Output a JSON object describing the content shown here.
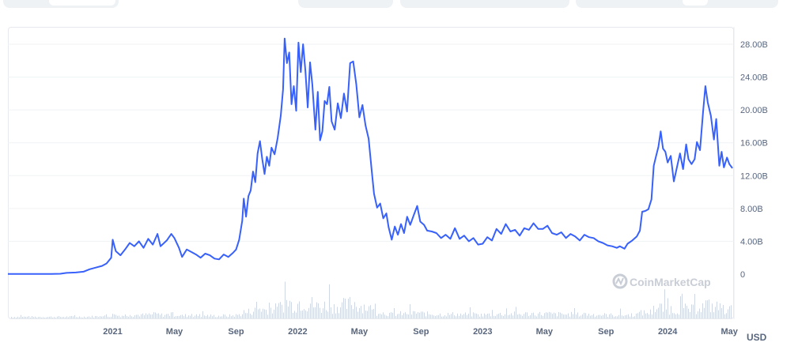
{
  "chart_data": {
    "type": "line",
    "currency": "USD",
    "watermark": "CoinMarketCap",
    "y_ticks": [
      {
        "value": 0,
        "label": "0"
      },
      {
        "value": 4,
        "label": "4.00B"
      },
      {
        "value": 8,
        "label": "8.00B"
      },
      {
        "value": 12,
        "label": "12.00B"
      },
      {
        "value": 16,
        "label": "16.00B"
      },
      {
        "value": 20,
        "label": "20.00B"
      },
      {
        "value": 24,
        "label": "24.00B"
      },
      {
        "value": 28,
        "label": "28.00B"
      }
    ],
    "ylim": [
      0,
      29
    ],
    "x_ticks": [
      {
        "t": 12,
        "label": "2021"
      },
      {
        "t": 16,
        "label": "May"
      },
      {
        "t": 20,
        "label": "Sep"
      },
      {
        "t": 24,
        "label": "2022"
      },
      {
        "t": 28,
        "label": "May"
      },
      {
        "t": 32,
        "label": "Sep"
      },
      {
        "t": 36,
        "label": "2023"
      },
      {
        "t": 40,
        "label": "May"
      },
      {
        "t": 44,
        "label": "Sep"
      },
      {
        "t": 48,
        "label": "2024"
      },
      {
        "t": 52,
        "label": "May"
      }
    ],
    "xlim": [
      5.2,
      52.3
    ],
    "series": [
      {
        "color": "#3861fb",
        "points": [
          [
            5.2,
            0.02
          ],
          [
            6.0,
            0.02
          ],
          [
            7.0,
            0.02
          ],
          [
            8.0,
            0.03
          ],
          [
            8.6,
            0.05
          ],
          [
            9.0,
            0.15
          ],
          [
            9.6,
            0.2
          ],
          [
            10.1,
            0.3
          ],
          [
            10.5,
            0.6
          ],
          [
            10.9,
            0.8
          ],
          [
            11.3,
            1.0
          ],
          [
            11.6,
            1.3
          ],
          [
            11.9,
            2.0
          ],
          [
            12.0,
            4.2
          ],
          [
            12.2,
            2.8
          ],
          [
            12.5,
            2.3
          ],
          [
            12.8,
            3.0
          ],
          [
            13.1,
            3.8
          ],
          [
            13.4,
            3.4
          ],
          [
            13.7,
            4.0
          ],
          [
            14.0,
            3.2
          ],
          [
            14.3,
            4.3
          ],
          [
            14.6,
            3.6
          ],
          [
            14.9,
            4.9
          ],
          [
            15.1,
            3.4
          ],
          [
            15.5,
            4.1
          ],
          [
            15.8,
            4.9
          ],
          [
            16.0,
            4.4
          ],
          [
            16.3,
            3.2
          ],
          [
            16.5,
            2.1
          ],
          [
            16.8,
            3.0
          ],
          [
            17.1,
            2.7
          ],
          [
            17.4,
            2.4
          ],
          [
            17.7,
            2.0
          ],
          [
            18.0,
            2.5
          ],
          [
            18.3,
            2.3
          ],
          [
            18.6,
            1.9
          ],
          [
            18.9,
            1.8
          ],
          [
            19.2,
            2.4
          ],
          [
            19.5,
            2.1
          ],
          [
            19.8,
            2.6
          ],
          [
            20.0,
            3.0
          ],
          [
            20.2,
            4.2
          ],
          [
            20.4,
            6.5
          ],
          [
            20.5,
            9.2
          ],
          [
            20.65,
            7.0
          ],
          [
            20.8,
            9.5
          ],
          [
            20.95,
            10.2
          ],
          [
            21.1,
            12.5
          ],
          [
            21.25,
            11.2
          ],
          [
            21.4,
            14.7
          ],
          [
            21.55,
            16.2
          ],
          [
            21.7,
            14.0
          ],
          [
            21.85,
            12.2
          ],
          [
            22.0,
            14.3
          ],
          [
            22.15,
            13.2
          ],
          [
            22.3,
            15.4
          ],
          [
            22.5,
            14.6
          ],
          [
            22.7,
            16.6
          ],
          [
            22.9,
            19.3
          ],
          [
            23.05,
            22.5
          ],
          [
            23.15,
            28.7
          ],
          [
            23.3,
            25.7
          ],
          [
            23.45,
            27.0
          ],
          [
            23.6,
            20.7
          ],
          [
            23.75,
            22.9
          ],
          [
            23.9,
            19.9
          ],
          [
            24.05,
            28.2
          ],
          [
            24.2,
            24.6
          ],
          [
            24.35,
            28.0
          ],
          [
            24.5,
            24.7
          ],
          [
            24.65,
            20.3
          ],
          [
            24.8,
            25.8
          ],
          [
            24.95,
            23.1
          ],
          [
            25.15,
            17.6
          ],
          [
            25.3,
            22.2
          ],
          [
            25.45,
            16.3
          ],
          [
            25.6,
            17.4
          ],
          [
            25.75,
            21.1
          ],
          [
            25.9,
            20.7
          ],
          [
            26.05,
            22.8
          ],
          [
            26.2,
            18.6
          ],
          [
            26.4,
            17.6
          ],
          [
            26.6,
            20.8
          ],
          [
            26.8,
            19.0
          ],
          [
            27.0,
            22.0
          ],
          [
            27.2,
            19.8
          ],
          [
            27.4,
            25.7
          ],
          [
            27.6,
            25.9
          ],
          [
            27.8,
            23.1
          ],
          [
            28.0,
            19.1
          ],
          [
            28.2,
            20.6
          ],
          [
            28.4,
            18.1
          ],
          [
            28.6,
            16.5
          ],
          [
            28.8,
            12.6
          ],
          [
            28.95,
            9.8
          ],
          [
            29.15,
            8.1
          ],
          [
            29.35,
            8.6
          ],
          [
            29.55,
            6.8
          ],
          [
            29.75,
            7.4
          ],
          [
            29.9,
            5.7
          ],
          [
            30.1,
            4.2
          ],
          [
            30.3,
            5.8
          ],
          [
            30.5,
            4.8
          ],
          [
            30.7,
            6.1
          ],
          [
            30.9,
            5.0
          ],
          [
            31.1,
            7.0
          ],
          [
            31.3,
            6.0
          ],
          [
            31.55,
            7.3
          ],
          [
            31.75,
            8.3
          ],
          [
            31.95,
            6.4
          ],
          [
            32.2,
            6.0
          ],
          [
            32.4,
            5.3
          ],
          [
            32.7,
            5.2
          ],
          [
            33.0,
            5.0
          ],
          [
            33.3,
            4.4
          ],
          [
            33.6,
            4.8
          ],
          [
            33.9,
            4.3
          ],
          [
            34.2,
            5.6
          ],
          [
            34.5,
            4.3
          ],
          [
            34.8,
            4.7
          ],
          [
            35.1,
            4.0
          ],
          [
            35.4,
            4.4
          ],
          [
            35.7,
            3.6
          ],
          [
            36.0,
            3.7
          ],
          [
            36.3,
            4.5
          ],
          [
            36.6,
            4.1
          ],
          [
            36.9,
            5.5
          ],
          [
            37.2,
            4.9
          ],
          [
            37.5,
            6.1
          ],
          [
            37.8,
            5.2
          ],
          [
            38.1,
            5.4
          ],
          [
            38.4,
            4.7
          ],
          [
            38.7,
            5.6
          ],
          [
            39.0,
            5.4
          ],
          [
            39.3,
            6.2
          ],
          [
            39.6,
            5.5
          ],
          [
            39.9,
            5.5
          ],
          [
            40.2,
            5.9
          ],
          [
            40.5,
            5.0
          ],
          [
            40.8,
            4.8
          ],
          [
            41.1,
            5.1
          ],
          [
            41.4,
            4.4
          ],
          [
            41.7,
            4.9
          ],
          [
            42.0,
            4.6
          ],
          [
            42.3,
            4.1
          ],
          [
            42.6,
            4.8
          ],
          [
            42.9,
            4.5
          ],
          [
            43.2,
            4.4
          ],
          [
            43.5,
            4.0
          ],
          [
            43.8,
            3.8
          ],
          [
            44.1,
            3.5
          ],
          [
            44.4,
            3.4
          ],
          [
            44.7,
            3.2
          ],
          [
            44.9,
            3.4
          ],
          [
            45.2,
            3.1
          ],
          [
            45.4,
            3.7
          ],
          [
            45.7,
            4.1
          ],
          [
            46.0,
            4.6
          ],
          [
            46.2,
            5.3
          ],
          [
            46.35,
            7.6
          ],
          [
            46.55,
            7.7
          ],
          [
            46.75,
            7.9
          ],
          [
            46.95,
            9.1
          ],
          [
            47.1,
            13.2
          ],
          [
            47.25,
            14.4
          ],
          [
            47.4,
            15.5
          ],
          [
            47.55,
            17.4
          ],
          [
            47.7,
            15.3
          ],
          [
            47.85,
            14.9
          ],
          [
            48.0,
            13.6
          ],
          [
            48.2,
            14.4
          ],
          [
            48.4,
            11.3
          ],
          [
            48.6,
            13.0
          ],
          [
            48.8,
            14.7
          ],
          [
            49.0,
            12.8
          ],
          [
            49.2,
            15.8
          ],
          [
            49.35,
            14.0
          ],
          [
            49.55,
            13.4
          ],
          [
            49.75,
            14.0
          ],
          [
            49.9,
            16.1
          ],
          [
            50.1,
            15.1
          ],
          [
            50.3,
            19.8
          ],
          [
            50.45,
            22.9
          ],
          [
            50.6,
            20.9
          ],
          [
            50.8,
            19.3
          ],
          [
            51.0,
            16.4
          ],
          [
            51.15,
            18.9
          ],
          [
            51.35,
            13.2
          ],
          [
            51.5,
            14.9
          ],
          [
            51.65,
            13.0
          ],
          [
            51.85,
            14.2
          ],
          [
            52.0,
            13.4
          ],
          [
            52.2,
            12.9
          ]
        ]
      }
    ]
  }
}
